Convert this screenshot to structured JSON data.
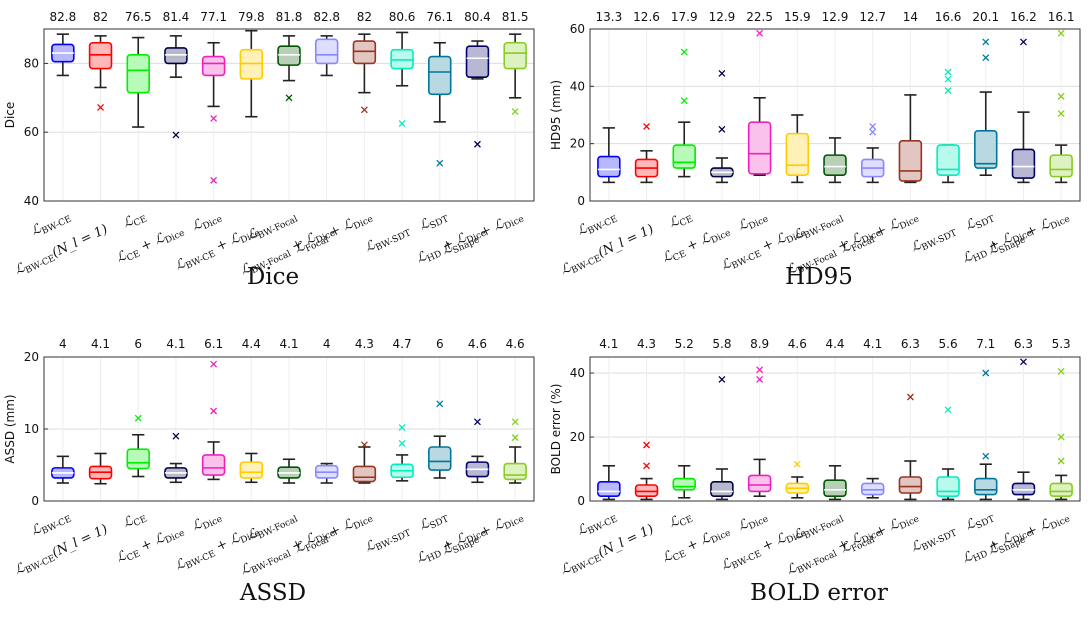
{
  "methods": [
    {
      "name": "L_BW-CE",
      "color": "#0000ff"
    },
    {
      "name": "L_BW-CE(N_l = 1)",
      "color": "#ff0000"
    },
    {
      "name": "L_CE",
      "color": "#00ee00"
    },
    {
      "name": "L_CE + L_Dice",
      "color": "#000044"
    },
    {
      "name": "L_Dice",
      "color": "#ee22bb"
    },
    {
      "name": "L_BW-CE + L_Dice",
      "color": "#ffcc00"
    },
    {
      "name": "L_BW-Focal",
      "color": "#005500"
    },
    {
      "name": "L_BW-Focal + L_Dice",
      "color": "#8888ff"
    },
    {
      "name": "L_Focal + L_Dice",
      "color": "#993322"
    },
    {
      "name": "L_BW-SDT",
      "color": "#00eebb"
    },
    {
      "name": "L_SDT",
      "color": "#007799"
    },
    {
      "name": "L_HD + L_Dice",
      "color": "#000066"
    },
    {
      "name": "L_Shape + L_Dice",
      "color": "#88cc22"
    }
  ],
  "chart_data": [
    {
      "type": "box",
      "title": "Dice",
      "ylabel": "Dice",
      "ylim": [
        40,
        90
      ],
      "yticks": [
        40,
        60,
        80
      ],
      "grid": true,
      "categories": [
        "L_BW-CE",
        "L_BW-CE(N_l = 1)",
        "L_CE",
        "L_CE + L_Dice",
        "L_Dice",
        "L_BW-CE + L_Dice",
        "L_BW-Focal",
        "L_BW-Focal + L_Dice",
        "L_Focal + L_Dice",
        "L_BW-SDT",
        "L_SDT",
        "L_HD + L_Dice",
        "L_Shape + L_Dice"
      ],
      "mean_labels": [
        "82.8",
        "82",
        "76.5",
        "81.4",
        "77.1",
        "79.8",
        "81.8",
        "82.8",
        "82",
        "80.6",
        "76.1",
        "80.4",
        "81.5"
      ],
      "boxes": [
        {
          "min": 76.5,
          "q1": 80.5,
          "median": 83,
          "q3": 85.5,
          "max": 88.5,
          "outliers": []
        },
        {
          "min": 73,
          "q1": 78.5,
          "median": 82.5,
          "q3": 86,
          "max": 88,
          "outliers": [
            67.2
          ]
        },
        {
          "min": 61.5,
          "q1": 71.5,
          "median": 78,
          "q3": 82.5,
          "max": 87.5,
          "outliers": []
        },
        {
          "min": 76,
          "q1": 80,
          "median": 82.5,
          "q3": 84.5,
          "max": 88,
          "outliers": [
            59.2
          ]
        },
        {
          "min": 67.5,
          "q1": 76.5,
          "median": 80,
          "q3": 82,
          "max": 86,
          "outliers": [
            64,
            46
          ]
        },
        {
          "min": 64.5,
          "q1": 75.5,
          "median": 80,
          "q3": 84,
          "max": 89.5,
          "outliers": []
        },
        {
          "min": 75,
          "q1": 79.5,
          "median": 82.5,
          "q3": 85,
          "max": 88,
          "outliers": [
            70
          ]
        },
        {
          "min": 76.5,
          "q1": 80,
          "median": 82.5,
          "q3": 87,
          "max": 88,
          "outliers": []
        },
        {
          "min": 71.5,
          "q1": 80,
          "median": 83.5,
          "q3": 86.5,
          "max": 88.5,
          "outliers": [
            66.5
          ]
        },
        {
          "min": 73.5,
          "q1": 78.5,
          "median": 81,
          "q3": 84,
          "max": 89,
          "outliers": [
            62.5
          ]
        },
        {
          "min": 63,
          "q1": 71,
          "median": 77.5,
          "q3": 82,
          "max": 86,
          "outliers": [
            51
          ]
        },
        {
          "min": 75.5,
          "q1": 76,
          "median": 81.5,
          "q3": 85,
          "max": 86.5,
          "outliers": [
            56.5
          ]
        },
        {
          "min": 70,
          "q1": 78.5,
          "median": 83,
          "q3": 86,
          "max": 88.5,
          "outliers": [
            66
          ]
        }
      ]
    },
    {
      "type": "box",
      "title": "HD95",
      "ylabel": "HD95 (mm)",
      "ylim": [
        0,
        60
      ],
      "yticks": [
        0,
        20,
        40,
        60
      ],
      "grid": true,
      "categories": [
        "L_BW-CE",
        "L_BW-CE(N_l = 1)",
        "L_CE",
        "L_CE + L_Dice",
        "L_Dice",
        "L_BW-CE + L_Dice",
        "L_BW-Focal",
        "L_BW-Focal + L_Dice",
        "L_Focal + L_Dice",
        "L_BW-SDT",
        "L_SDT",
        "L_HD + L_Dice",
        "L_Shape + L_Dice"
      ],
      "mean_labels": [
        "13.3",
        "12.6",
        "17.9",
        "12.9",
        "22.5",
        "15.9",
        "12.9",
        "12.7",
        "14",
        "16.6",
        "20.1",
        "16.2",
        "16.1"
      ],
      "boxes": [
        {
          "min": 6.5,
          "q1": 8.5,
          "median": 11,
          "q3": 15.5,
          "max": 25.5,
          "outliers": []
        },
        {
          "min": 6.5,
          "q1": 8.5,
          "median": 11.5,
          "q3": 14.5,
          "max": 17.5,
          "outliers": [
            26
          ]
        },
        {
          "min": 8.5,
          "q1": 11.5,
          "median": 13.5,
          "q3": 19.5,
          "max": 27.5,
          "outliers": [
            52,
            35
          ]
        },
        {
          "min": 6.5,
          "q1": 8.5,
          "median": 10,
          "q3": 11.5,
          "max": 15,
          "outliers": [
            44.5,
            25
          ]
        },
        {
          "min": 9,
          "q1": 9.5,
          "median": 16.5,
          "q3": 27.5,
          "max": 36,
          "outliers": [
            58.5
          ]
        },
        {
          "min": 6.5,
          "q1": 9,
          "median": 12.5,
          "q3": 23.5,
          "max": 30,
          "outliers": []
        },
        {
          "min": 6.5,
          "q1": 9,
          "median": 12,
          "q3": 16,
          "max": 22,
          "outliers": []
        },
        {
          "min": 6.5,
          "q1": 8.5,
          "median": 11.5,
          "q3": 14.5,
          "max": 18.5,
          "outliers": [
            26,
            24
          ]
        },
        {
          "min": 6.5,
          "q1": 7,
          "median": 10.5,
          "q3": 21,
          "max": 37,
          "outliers": []
        },
        {
          "min": 6.5,
          "q1": 9,
          "median": 11,
          "q3": 19.5,
          "max": 19.5,
          "outliers": [
            45,
            42.5,
            38.5
          ]
        },
        {
          "min": 9,
          "q1": 11.5,
          "median": 13,
          "q3": 24.5,
          "max": 38,
          "outliers": [
            55.5,
            50
          ]
        },
        {
          "min": 6.5,
          "q1": 8,
          "median": 12,
          "q3": 18,
          "max": 31,
          "outliers": [
            55.5
          ]
        },
        {
          "min": 6.5,
          "q1": 8.5,
          "median": 11,
          "q3": 16,
          "max": 19.5,
          "outliers": [
            58.5,
            36.5,
            30.5
          ]
        }
      ]
    },
    {
      "type": "box",
      "title": "ASSD",
      "ylabel": "ASSD (mm)",
      "ylim": [
        0,
        20
      ],
      "yticks": [
        0,
        10,
        20
      ],
      "grid": true,
      "categories": [
        "L_BW-CE",
        "L_BW-CE(N_l = 1)",
        "L_CE",
        "L_CE + L_Dice",
        "L_Dice",
        "L_BW-CE + L_Dice",
        "L_BW-Focal",
        "L_BW-Focal + L_Dice",
        "L_Focal + L_Dice",
        "L_BW-SDT",
        "L_SDT",
        "L_HD + L_Dice",
        "L_Shape + L_Dice"
      ],
      "mean_labels": [
        "4",
        "4.1",
        "6",
        "4.1",
        "6.1",
        "4.4",
        "4.1",
        "4",
        "4.3",
        "4.7",
        "6",
        "4.6",
        "4.6"
      ],
      "boxes": [
        {
          "min": 2.5,
          "q1": 3.2,
          "median": 3.9,
          "q3": 4.6,
          "max": 6.2,
          "outliers": []
        },
        {
          "min": 2.4,
          "q1": 3.1,
          "median": 4,
          "q3": 4.8,
          "max": 6.6,
          "outliers": []
        },
        {
          "min": 3.4,
          "q1": 4.5,
          "median": 5.3,
          "q3": 7.2,
          "max": 9.2,
          "outliers": [
            11.5
          ]
        },
        {
          "min": 2.6,
          "q1": 3.2,
          "median": 3.9,
          "q3": 4.6,
          "max": 5.2,
          "outliers": [
            9
          ]
        },
        {
          "min": 3,
          "q1": 3.6,
          "median": 4.6,
          "q3": 6.4,
          "max": 8.2,
          "outliers": [
            19,
            12.5
          ]
        },
        {
          "min": 2.6,
          "q1": 3.2,
          "median": 4,
          "q3": 5.4,
          "max": 6.6,
          "outliers": []
        },
        {
          "min": 2.5,
          "q1": 3.2,
          "median": 3.9,
          "q3": 4.7,
          "max": 5.8,
          "outliers": []
        },
        {
          "min": 2.5,
          "q1": 3.2,
          "median": 4,
          "q3": 4.9,
          "max": 5.2,
          "outliers": []
        },
        {
          "min": 2.5,
          "q1": 2.7,
          "median": 3.3,
          "q3": 4.8,
          "max": 7.5,
          "outliers": [
            7.8
          ]
        },
        {
          "min": 2.8,
          "q1": 3.3,
          "median": 4.2,
          "q3": 5.1,
          "max": 6.4,
          "outliers": [
            10.2,
            8
          ]
        },
        {
          "min": 3.2,
          "q1": 4.3,
          "median": 5.5,
          "q3": 7.5,
          "max": 9,
          "outliers": [
            13.5
          ]
        },
        {
          "min": 2.6,
          "q1": 3.4,
          "median": 4.4,
          "q3": 5.4,
          "max": 6.2,
          "outliers": [
            11
          ]
        },
        {
          "min": 2.5,
          "q1": 3,
          "median": 3.6,
          "q3": 5.2,
          "max": 7.5,
          "outliers": [
            11,
            8.8
          ]
        }
      ]
    },
    {
      "type": "box",
      "title": "BOLD error",
      "ylabel": "BOLD error (%)",
      "ylim": [
        0,
        45
      ],
      "yticks": [
        0,
        20,
        40
      ],
      "grid": true,
      "categories": [
        "L_BW-CE",
        "L_BW-CE(N_l = 1)",
        "L_CE",
        "L_CE + L_Dice",
        "L_Dice",
        "L_BW-CE + L_Dice",
        "L_BW-Focal",
        "L_BW-Focal + L_Dice",
        "L_Focal + L_Dice",
        "L_BW-SDT",
        "L_SDT",
        "L_HD + L_Dice",
        "L_Shape + L_Dice"
      ],
      "mean_labels": [
        "4.1",
        "4.3",
        "5.2",
        "5.8",
        "8.9",
        "4.6",
        "4.4",
        "4.1",
        "6.3",
        "5.6",
        "7.1",
        "6.3",
        "5.3"
      ],
      "boxes": [
        {
          "min": 0.5,
          "q1": 1.5,
          "median": 3,
          "q3": 6,
          "max": 11,
          "outliers": []
        },
        {
          "min": 0.5,
          "q1": 1.5,
          "median": 3,
          "q3": 5,
          "max": 7,
          "outliers": [
            17.5,
            11
          ]
        },
        {
          "min": 1,
          "q1": 3.5,
          "median": 4.5,
          "q3": 7,
          "max": 11,
          "outliers": []
        },
        {
          "min": 0.5,
          "q1": 1.5,
          "median": 3,
          "q3": 6,
          "max": 10,
          "outliers": [
            38
          ]
        },
        {
          "min": 1.5,
          "q1": 3,
          "median": 5,
          "q3": 8,
          "max": 13,
          "outliers": [
            41,
            38
          ]
        },
        {
          "min": 1,
          "q1": 2.5,
          "median": 4,
          "q3": 5.5,
          "max": 7.5,
          "outliers": [
            11.5
          ]
        },
        {
          "min": 0.5,
          "q1": 1.5,
          "median": 3.5,
          "q3": 6.5,
          "max": 11,
          "outliers": []
        },
        {
          "min": 1,
          "q1": 2,
          "median": 3.5,
          "q3": 5.5,
          "max": 7,
          "outliers": []
        },
        {
          "min": 0.5,
          "q1": 2.5,
          "median": 4.5,
          "q3": 7.5,
          "max": 12.5,
          "outliers": [
            32.5
          ]
        },
        {
          "min": 0.5,
          "q1": 1.5,
          "median": 3,
          "q3": 7.5,
          "max": 10,
          "outliers": [
            28.5
          ]
        },
        {
          "min": 0.5,
          "q1": 2,
          "median": 3.5,
          "q3": 7,
          "max": 11.5,
          "outliers": [
            40,
            14
          ]
        },
        {
          "min": 0.5,
          "q1": 2,
          "median": 3.5,
          "q3": 5.5,
          "max": 9,
          "outliers": [
            43.5
          ]
        },
        {
          "min": 0.5,
          "q1": 1.5,
          "median": 3,
          "q3": 5.5,
          "max": 8,
          "outliers": [
            40.5,
            20,
            12.5
          ]
        }
      ]
    }
  ]
}
